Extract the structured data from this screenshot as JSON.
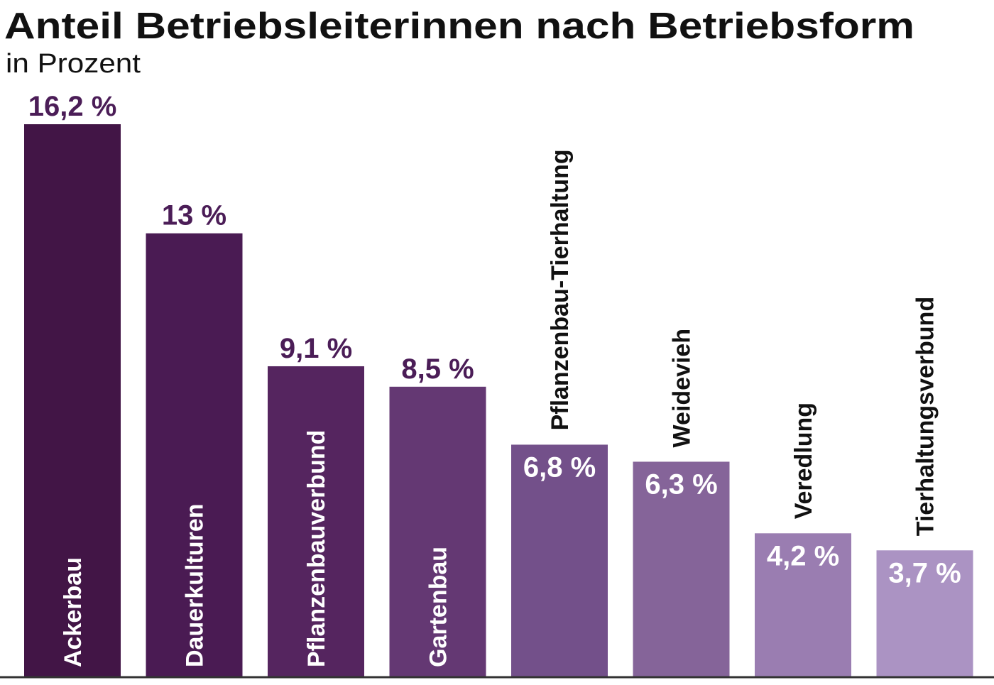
{
  "chart_data": {
    "type": "bar",
    "title": "Anteil Betriebsleiterinnen nach Betriebsform",
    "subtitle": "in Prozent",
    "xlabel": "",
    "ylabel": "",
    "ylim": [
      0,
      16.2
    ],
    "grid": false,
    "unit": "%",
    "categories": [
      "Ackerbau",
      "Dauerkulturen",
      "Pflanzenbauverbund",
      "Gartenbau",
      "Pflanzenbau-Tierhaltung",
      "Weidevieh",
      "Veredlung",
      "Tierhaltungsverbund"
    ],
    "values": [
      16.2,
      13,
      9.1,
      8.5,
      6.8,
      6.3,
      4.2,
      3.7
    ],
    "value_labels": [
      "16,2 %",
      "13 %",
      "9,1 %",
      "8,5 %",
      "6,8 %",
      "6,3 %",
      "4,2 %",
      "3,7 %"
    ],
    "colors": [
      "#421546",
      "#4a1b53",
      "#55255f",
      "#643873",
      "#73508a",
      "#856499",
      "#9a7db1",
      "#ab93c3"
    ],
    "label_color": "#4b1d57"
  }
}
